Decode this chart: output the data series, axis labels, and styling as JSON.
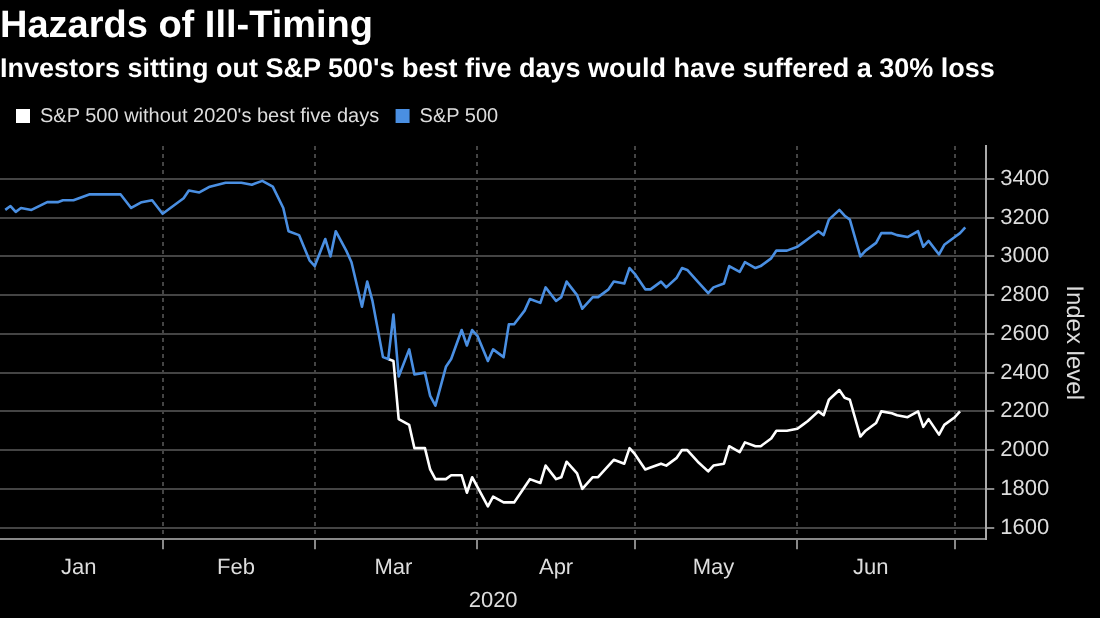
{
  "chart_data": {
    "type": "line",
    "title": "Hazards of Ill-Timing",
    "subtitle": "Investors sitting out S&P 500's best five days would have suffered a 30% loss",
    "xlabel": "2020",
    "ylabel": "Index level",
    "x": [
      "2020-01-02",
      "2020-01-03",
      "2020-01-04",
      "2020-01-05",
      "2020-01-07",
      "2020-01-10",
      "2020-01-12",
      "2020-01-13",
      "2020-01-15",
      "2020-01-18",
      "2020-01-20",
      "2020-01-24",
      "2020-01-26",
      "2020-01-28",
      "2020-01-30",
      "2020-02-01",
      "2020-02-05",
      "2020-02-06",
      "2020-02-08",
      "2020-02-10",
      "2020-02-13",
      "2020-02-16",
      "2020-02-18",
      "2020-02-20",
      "2020-02-22",
      "2020-02-24",
      "2020-02-25",
      "2020-02-27",
      "2020-02-29",
      "2020-03-01",
      "2020-03-03",
      "2020-03-04",
      "2020-03-05",
      "2020-03-07",
      "2020-03-08",
      "2020-03-10",
      "2020-03-11",
      "2020-03-12",
      "2020-03-14",
      "2020-03-15",
      "2020-03-16",
      "2020-03-17",
      "2020-03-19",
      "2020-03-20",
      "2020-03-22",
      "2020-03-23",
      "2020-03-24",
      "2020-03-26",
      "2020-03-27",
      "2020-03-29",
      "2020-03-30",
      "2020-03-31",
      "2020-04-01",
      "2020-04-03",
      "2020-04-04",
      "2020-04-06",
      "2020-04-07",
      "2020-04-08",
      "2020-04-10",
      "2020-04-11",
      "2020-04-13",
      "2020-04-14",
      "2020-04-16",
      "2020-04-17",
      "2020-04-18",
      "2020-04-20",
      "2020-04-21",
      "2020-04-23",
      "2020-04-24",
      "2020-04-26",
      "2020-04-27",
      "2020-04-29",
      "2020-04-30",
      "2020-05-01",
      "2020-05-03",
      "2020-05-04",
      "2020-05-06",
      "2020-05-07",
      "2020-05-09",
      "2020-05-10",
      "2020-05-11",
      "2020-05-13",
      "2020-05-15",
      "2020-05-16",
      "2020-05-18",
      "2020-05-19",
      "2020-05-21",
      "2020-05-22",
      "2020-05-24",
      "2020-05-25",
      "2020-05-27",
      "2020-05-28",
      "2020-05-30",
      "2020-06-01",
      "2020-06-02",
      "2020-06-03",
      "2020-06-05",
      "2020-06-06",
      "2020-06-07",
      "2020-06-09",
      "2020-06-10",
      "2020-06-11",
      "2020-06-13",
      "2020-06-14",
      "2020-06-16",
      "2020-06-17",
      "2020-06-19",
      "2020-06-20",
      "2020-06-22",
      "2020-06-24",
      "2020-06-25",
      "2020-06-26",
      "2020-06-28",
      "2020-06-29",
      "2020-07-01",
      "2020-07-02",
      "2020-07-03"
    ],
    "series": [
      {
        "name": "S&P 500 without 2020's best five days",
        "color": "#ffffff",
        "values": [
          null,
          null,
          null,
          null,
          null,
          null,
          null,
          null,
          null,
          null,
          null,
          null,
          null,
          null,
          null,
          null,
          null,
          null,
          null,
          null,
          null,
          null,
          null,
          null,
          null,
          null,
          null,
          null,
          null,
          null,
          null,
          null,
          null,
          null,
          null,
          null,
          null,
          null,
          null,
          2470,
          2460,
          2160,
          2130,
          2010,
          2010,
          1900,
          1850,
          1850,
          1870,
          1870,
          1780,
          1860,
          1810,
          1710,
          1760,
          1730,
          1730,
          1730,
          1810,
          1850,
          1830,
          1920,
          1850,
          1860,
          1940,
          1880,
          1800,
          1860,
          1860,
          1920,
          1950,
          1930,
          2010,
          1980,
          1900,
          1910,
          1930,
          1920,
          1960,
          2000,
          2000,
          1940,
          1890,
          1920,
          1930,
          2020,
          1990,
          2040,
          2020,
          2020,
          2060,
          2100,
          2100,
          2110,
          2130,
          2150,
          2200,
          2180,
          2260,
          2310,
          2270,
          2260,
          2070,
          2100,
          2140,
          2200,
          2190,
          2180,
          2170,
          2200,
          2120,
          2160,
          2080,
          2130,
          2170,
          2200,
          null
        ]
      },
      {
        "name": "S&P 500",
        "color": "#4a8fe2",
        "values": [
          3240,
          3260,
          3230,
          3250,
          3240,
          3280,
          3280,
          3290,
          3290,
          3320,
          3320,
          3320,
          3250,
          3280,
          3290,
          3220,
          3300,
          3340,
          3330,
          3360,
          3380,
          3380,
          3370,
          3390,
          3360,
          3250,
          3130,
          3110,
          2980,
          2950,
          3090,
          3000,
          3130,
          3030,
          2970,
          2740,
          2870,
          2770,
          2480,
          2470,
          2700,
          2380,
          2520,
          2390,
          2400,
          2280,
          2230,
          2430,
          2470,
          2620,
          2540,
          2620,
          2590,
          2460,
          2520,
          2480,
          2650,
          2650,
          2720,
          2780,
          2760,
          2840,
          2770,
          2790,
          2870,
          2800,
          2730,
          2790,
          2790,
          2830,
          2870,
          2860,
          2940,
          2910,
          2830,
          2830,
          2870,
          2840,
          2890,
          2940,
          2930,
          2870,
          2810,
          2840,
          2860,
          2950,
          2920,
          2970,
          2940,
          2950,
          2990,
          3030,
          3030,
          3050,
          3070,
          3090,
          3130,
          3110,
          3190,
          3240,
          3210,
          3190,
          3000,
          3030,
          3070,
          3120,
          3120,
          3110,
          3100,
          3130,
          3050,
          3080,
          3010,
          3060,
          3100,
          3120,
          3150
        ]
      }
    ],
    "xlim": [
      "2020-01-01",
      "2020-07-07"
    ],
    "xticks": [
      {
        "value": "2020-01-16",
        "label": "Jan"
      },
      {
        "value": "2020-02-01",
        "label": null
      },
      {
        "value": "2020-02-15",
        "label": "Feb"
      },
      {
        "value": "2020-03-01",
        "label": null
      },
      {
        "value": "2020-03-16",
        "label": "Mar"
      },
      {
        "value": "2020-04-01",
        "label": null
      },
      {
        "value": "2020-04-16",
        "label": "Apr"
      },
      {
        "value": "2020-05-01",
        "label": null
      },
      {
        "value": "2020-05-16",
        "label": "May"
      },
      {
        "value": "2020-06-01",
        "label": null
      },
      {
        "value": "2020-06-15",
        "label": "Jun"
      },
      {
        "value": "2020-07-01",
        "label": null
      }
    ],
    "ylim": [
      1540,
      3570
    ],
    "yticks": [
      1600,
      1800,
      2000,
      2200,
      2400,
      2600,
      2800,
      3000,
      3200,
      3400
    ],
    "grid": true,
    "legend": "top left",
    "marker": "none",
    "line_style": "solid"
  }
}
